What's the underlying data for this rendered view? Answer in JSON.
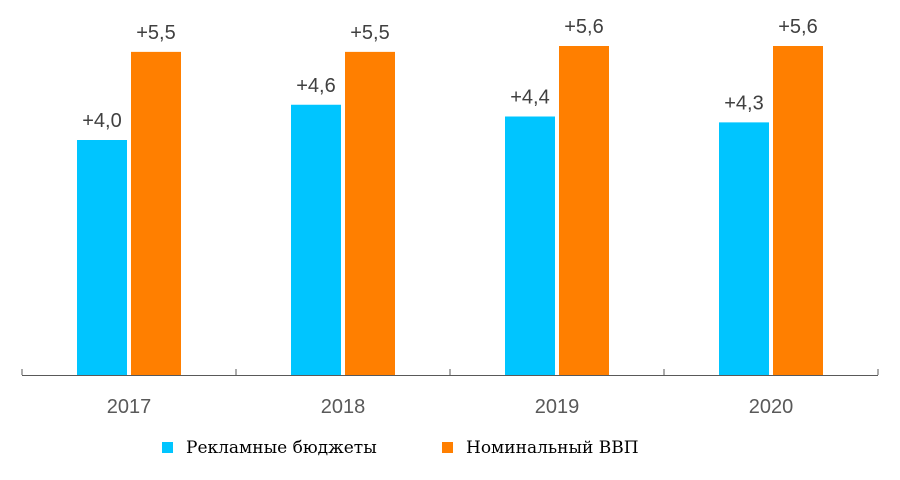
{
  "chart_data": {
    "type": "bar",
    "title": "",
    "xlabel": "",
    "ylabel": "",
    "categories": [
      "2017",
      "2018",
      "2019",
      "2020"
    ],
    "series": [
      {
        "name": "Рекламные бюджеты",
        "color": "#00c5ff",
        "values": [
          4.0,
          4.6,
          4.4,
          4.3
        ],
        "labels": [
          "+4,0",
          "+4,6",
          "+4,4",
          "+4,3"
        ]
      },
      {
        "name": "Номинальный ВВП",
        "color": "#ff7f00",
        "values": [
          5.5,
          5.5,
          5.6,
          5.6
        ],
        "labels": [
          "+5,5",
          "+5,5",
          "+5,6",
          "+5,6"
        ]
      }
    ],
    "ylim": [
      0,
      6
    ],
    "grid": false,
    "legend_position": "bottom"
  }
}
